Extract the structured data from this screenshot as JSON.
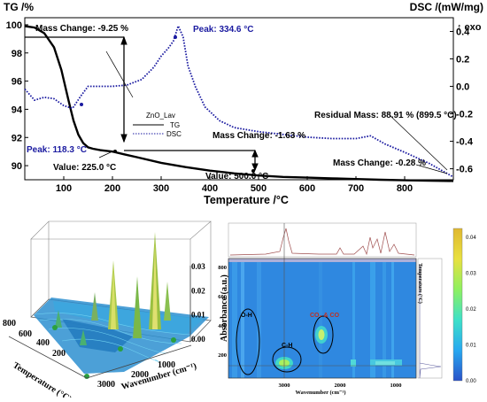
{
  "chart_data": [
    {
      "type": "line",
      "title": "",
      "xlabel": "Temperature /°C",
      "ylabel": "TG /%",
      "y2label": "DSC /(mW/mg)",
      "y2label_extra": "↑ exo",
      "xlim": [
        20,
        900
      ],
      "ylim": [
        89,
        100.5
      ],
      "y2lim": [
        -0.68,
        0.5
      ],
      "xticks": [
        "100",
        "200",
        "300",
        "400",
        "500",
        "600",
        "700",
        "800"
      ],
      "yticks": [
        "90",
        "92",
        "94",
        "96",
        "98",
        "100"
      ],
      "y2ticks": [
        "-0.6",
        "-0.4",
        "-0.2",
        "0.0",
        "0.2",
        "0.4"
      ],
      "legend": {
        "sample": "ZnO_Lav",
        "entries": [
          "TG",
          "DSC"
        ],
        "placement": "center"
      },
      "series": [
        {
          "name": "TG",
          "axis": "left",
          "color": "#000000",
          "style": "solid",
          "x": [
            20,
            40,
            60,
            80,
            95,
            110,
            120,
            130,
            140,
            150,
            160,
            175,
            200,
            225,
            250,
            300,
            350,
            400,
            450,
            500,
            550,
            600,
            650,
            700,
            750,
            800,
            850,
            900
          ],
          "y": [
            99.9,
            99.8,
            99.4,
            98.4,
            96.8,
            94.6,
            93.2,
            92.2,
            91.6,
            91.3,
            91.2,
            91.1,
            91.0,
            90.8,
            90.6,
            90.2,
            89.9,
            89.65,
            89.45,
            89.3,
            89.2,
            89.15,
            89.1,
            89.05,
            89.0,
            88.96,
            88.93,
            88.91
          ]
        },
        {
          "name": "DSC",
          "axis": "right",
          "color": "#1a1aa0",
          "style": "dotted",
          "x": [
            20,
            40,
            60,
            80,
            100,
            118,
            135,
            150,
            170,
            200,
            230,
            260,
            285,
            300,
            315,
            325,
            335,
            345,
            355,
            370,
            390,
            420,
            450,
            500,
            550,
            600,
            650,
            700,
            730,
            760,
            800,
            850,
            880,
            900
          ],
          "y": [
            -0.02,
            -0.1,
            -0.08,
            -0.09,
            -0.14,
            -0.16,
            -0.07,
            0.0,
            0.0,
            0.0,
            0.01,
            0.05,
            0.14,
            0.22,
            0.28,
            0.33,
            0.44,
            0.36,
            0.15,
            0.0,
            -0.15,
            -0.25,
            -0.3,
            -0.33,
            -0.35,
            -0.37,
            -0.38,
            -0.38,
            -0.36,
            -0.42,
            -0.48,
            -0.56,
            -0.62,
            -0.66
          ]
        }
      ],
      "annotations": [
        "Mass Change: -9.25 %",
        "Peak: 334.6 °C",
        "Residual Mass: 88.91 % (899.5 °C)",
        "Peak: 118.3 °C",
        "Mass Change: -1.63 %",
        "Value: 225.0 °C",
        "Value: 500.0 °C",
        "Mass Change: -0.28 %"
      ]
    },
    {
      "type": "surface",
      "xlabel": "Temperature (°C)",
      "ylabel": "Wavenumber (cm⁻¹)",
      "zlabel": "Absorbance (a.u.)",
      "temperature_ticks": [
        "200",
        "400",
        "600",
        "800"
      ],
      "wavenumber_ticks": [
        "1000",
        "2000",
        "3000"
      ],
      "absorbance_ticks": [
        "0.00",
        "0.01",
        "0.02",
        "0.03"
      ]
    },
    {
      "type": "heatmap",
      "xlabel": "Wavenumber (cm⁻¹)",
      "ylabel": "Temperature (°C)",
      "xticks": [
        "3000",
        "2000",
        "1000"
      ],
      "yticks": [
        "200",
        "400",
        "600",
        "800"
      ],
      "colorbar_ticks": [
        "0.00",
        "0.01",
        "0.02",
        "0.03",
        "0.04"
      ],
      "colorbar_colors": [
        "#2a52c8",
        "#28a8f0",
        "#3ee0c8",
        "#8ef060",
        "#e8e040",
        "#e0b830"
      ],
      "regions": [
        {
          "label": "O-H",
          "color": "#000000"
        },
        {
          "label": "C-H",
          "color": "#000000"
        },
        {
          "label": "CO₂ & CO",
          "color": "#c03020"
        }
      ]
    }
  ]
}
